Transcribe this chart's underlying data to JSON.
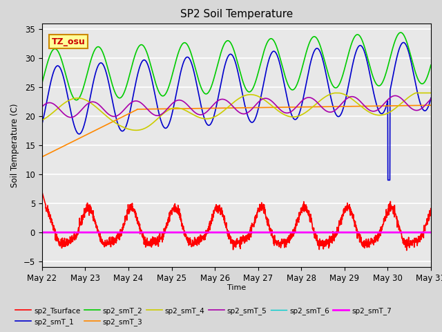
{
  "title": "SP2 Soil Temperature",
  "xlabel": "Time",
  "ylabel": "Soil Temperature (C)",
  "annotation_text": "TZ_osu",
  "annotation_color": "#cc0000",
  "annotation_bg": "#ffff99",
  "annotation_border": "#cc8800",
  "legend_entries": [
    "sp2_Tsurface",
    "sp2_smT_1",
    "sp2_smT_2",
    "sp2_smT_3",
    "sp2_smT_4",
    "sp2_smT_5",
    "sp2_smT_6",
    "sp2_smT_7"
  ],
  "line_colors": [
    "#ff0000",
    "#0000cc",
    "#00cc00",
    "#ff8800",
    "#cccc00",
    "#aa00aa",
    "#00cccc",
    "#ff00ff"
  ],
  "bg_color": "#d8d8d8",
  "plot_bg": "#e8e8e8",
  "ylim": [
    -6,
    36
  ],
  "xtick_labels": [
    "May 22",
    "May 23",
    "May 24",
    "May 25",
    "May 26",
    "May 27",
    "May 28",
    "May 29",
    "May 30",
    "May 31"
  ]
}
